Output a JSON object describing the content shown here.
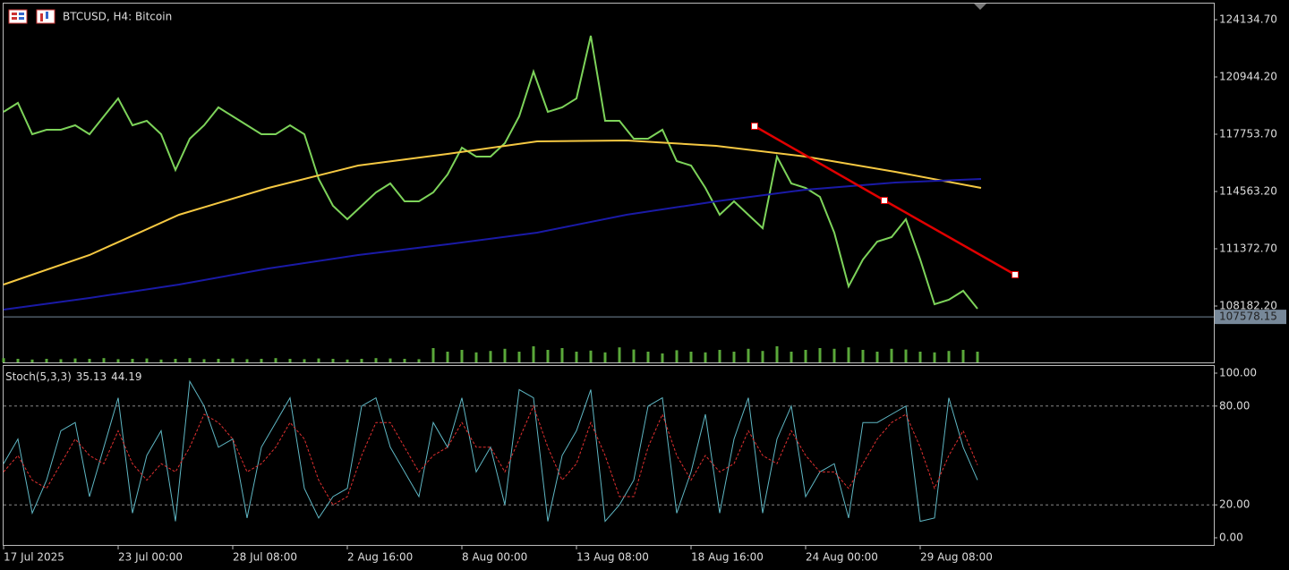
{
  "chart_data": [
    {
      "type": "line",
      "title": "BTCUSD, H4:  Bitcoin",
      "x": [
        0,
        4,
        8,
        12,
        16,
        20,
        24,
        28,
        32,
        36,
        40,
        44,
        48,
        52,
        56,
        60,
        64,
        68,
        72,
        76,
        80,
        84,
        88,
        92,
        96,
        100,
        104,
        108,
        112,
        116,
        120,
        124,
        128,
        132,
        136,
        140,
        144,
        148,
        152,
        156,
        160,
        164,
        168,
        172,
        176,
        180,
        184,
        188,
        192,
        196,
        200,
        204,
        208,
        212,
        216,
        220,
        224,
        228,
        232,
        236,
        240,
        244,
        248,
        252,
        256,
        260,
        264,
        268,
        272
      ],
      "xlim": [
        0,
        338
      ],
      "ylim": [
        105042,
        125032
      ],
      "yticks": [
        {
          "value": 124134.7,
          "label": "124134.70"
        },
        {
          "value": 120944.2,
          "label": "120944.20"
        },
        {
          "value": 117753.7,
          "label": "117753.70"
        },
        {
          "value": 114563.2,
          "label": "114563.20"
        },
        {
          "value": 111372.7,
          "label": "111372.70"
        },
        {
          "value": 108182.2,
          "label": "108182.20"
        }
      ],
      "current_price": 107578.15,
      "series": [
        {
          "color": "#7dd35a",
          "values": [
            119000,
            119499,
            117754,
            118003,
            118003,
            118253,
            117754,
            118751,
            119748,
            118253,
            118502,
            117754,
            115760,
            117505,
            118253,
            119250,
            118751,
            118253,
            117754,
            117754,
            118253,
            117754,
            115262,
            113766,
            113018,
            113766,
            114514,
            115012,
            114015,
            114015,
            114514,
            115511,
            117006,
            116508,
            116508,
            117256,
            118751,
            121244,
            119000,
            119250,
            119748,
            123238,
            118502,
            118502,
            117505,
            117505,
            118003,
            116259,
            116009,
            114763,
            113268,
            114015,
            113268,
            112520,
            116508,
            115012,
            114763,
            114265,
            112271,
            109280,
            110775,
            111772,
            112021,
            113018,
            110775,
            108283,
            108532,
            109030,
            108033
          ]
        },
        {
          "color": "#f5c842",
          "x": [
            0,
            24,
            49,
            74,
            99,
            124,
            149,
            174,
            199,
            224,
            249,
            273
          ],
          "values": [
            109379,
            111024,
            113268,
            114763,
            116009,
            116657,
            117355,
            117405,
            117106,
            116508,
            115660,
            114763
          ]
        },
        {
          "color": "#1a1aa6",
          "x": [
            0,
            24,
            49,
            74,
            99,
            124,
            149,
            174,
            199,
            224,
            249,
            273
          ],
          "values": [
            107984,
            108632,
            109379,
            110277,
            111024,
            111623,
            112271,
            113268,
            114015,
            114663,
            115062,
            115262
          ]
        }
      ],
      "trendline": {
        "color": "#e00000",
        "x": [
          209.75,
          246,
          282.5
        ],
        "y": [
          118203,
          114065,
          109928
        ]
      },
      "volume": {
        "color": "#5aa83a",
        "ylim": [
          0,
          100
        ],
        "values": [
          12,
          10,
          8,
          10,
          9,
          11,
          10,
          12,
          9,
          10,
          11,
          8,
          10,
          12,
          9,
          10,
          11,
          9,
          10,
          12,
          10,
          9,
          11,
          10,
          8,
          10,
          12,
          11,
          10,
          9,
          40,
          30,
          35,
          28,
          32,
          38,
          30,
          45,
          35,
          40,
          30,
          33,
          28,
          42,
          36,
          30,
          25,
          34,
          30,
          28,
          35,
          30,
          38,
          32,
          45,
          30,
          35,
          40,
          38,
          42,
          35,
          30,
          38,
          36,
          30,
          28,
          32,
          35,
          30
        ]
      }
    },
    {
      "type": "line",
      "title": "Stoch(5,3,3)",
      "x": [
        0,
        4,
        8,
        12,
        16,
        20,
        24,
        28,
        32,
        36,
        40,
        44,
        48,
        52,
        56,
        60,
        64,
        68,
        72,
        76,
        80,
        84,
        88,
        92,
        96,
        100,
        104,
        108,
        112,
        116,
        120,
        124,
        128,
        132,
        136,
        140,
        144,
        148,
        152,
        156,
        160,
        164,
        168,
        172,
        176,
        180,
        184,
        188,
        192,
        196,
        200,
        204,
        208,
        212,
        216,
        220,
        224,
        228,
        232,
        236,
        240,
        244,
        248,
        252,
        256,
        260,
        264,
        268,
        272
      ],
      "xlim": [
        0,
        338
      ],
      "ylim": [
        0,
        100
      ],
      "yticks": [
        {
          "value": 100,
          "label": "100.00"
        },
        {
          "value": 80,
          "label": "80.00"
        },
        {
          "value": 20,
          "label": "20.00"
        },
        {
          "value": 0,
          "label": "0.00"
        }
      ],
      "levels": [
        80,
        20
      ],
      "xticks": [
        {
          "value": 0,
          "label": "17 Jul 2025"
        },
        {
          "value": 32,
          "label": "23 Jul 00:00"
        },
        {
          "value": 64,
          "label": "28 Jul 08:00"
        },
        {
          "value": 96,
          "label": "2 Aug 16:00"
        },
        {
          "value": 128,
          "label": "8 Aug 00:00"
        },
        {
          "value": 160,
          "label": "13 Aug 08:00"
        },
        {
          "value": 192,
          "label": "18 Aug 16:00"
        },
        {
          "value": 224,
          "label": "24 Aug 00:00"
        },
        {
          "value": 256,
          "label": "29 Aug 08:00"
        }
      ],
      "series": [
        {
          "color": "#5fb7c4",
          "values": [
            45,
            60,
            15,
            35,
            65,
            70,
            25,
            55,
            85,
            15,
            50,
            65,
            10,
            95,
            80,
            55,
            60,
            12,
            55,
            70,
            85,
            30,
            12,
            25,
            30,
            80,
            85,
            55,
            40,
            25,
            70,
            55,
            85,
            40,
            55,
            20,
            90,
            85,
            10,
            50,
            65,
            90,
            10,
            20,
            35,
            80,
            85,
            15,
            40,
            75,
            15,
            60,
            85,
            15,
            60,
            80,
            25,
            40,
            45,
            12,
            70,
            70,
            75,
            80,
            10,
            12,
            85,
            55,
            35.13
          ]
        },
        {
          "color": "#e03030",
          "dashed": true,
          "values": [
            40,
            50,
            35,
            30,
            45,
            60,
            50,
            45,
            65,
            45,
            35,
            45,
            40,
            55,
            75,
            70,
            60,
            40,
            45,
            55,
            70,
            60,
            35,
            20,
            25,
            50,
            70,
            70,
            55,
            40,
            50,
            55,
            70,
            55,
            55,
            40,
            60,
            80,
            55,
            35,
            45,
            70,
            50,
            25,
            25,
            55,
            75,
            50,
            35,
            50,
            40,
            45,
            65,
            50,
            45,
            65,
            50,
            40,
            40,
            30,
            45,
            60,
            70,
            75,
            55,
            30,
            50,
            65,
            44.19
          ]
        }
      ]
    }
  ]
}
